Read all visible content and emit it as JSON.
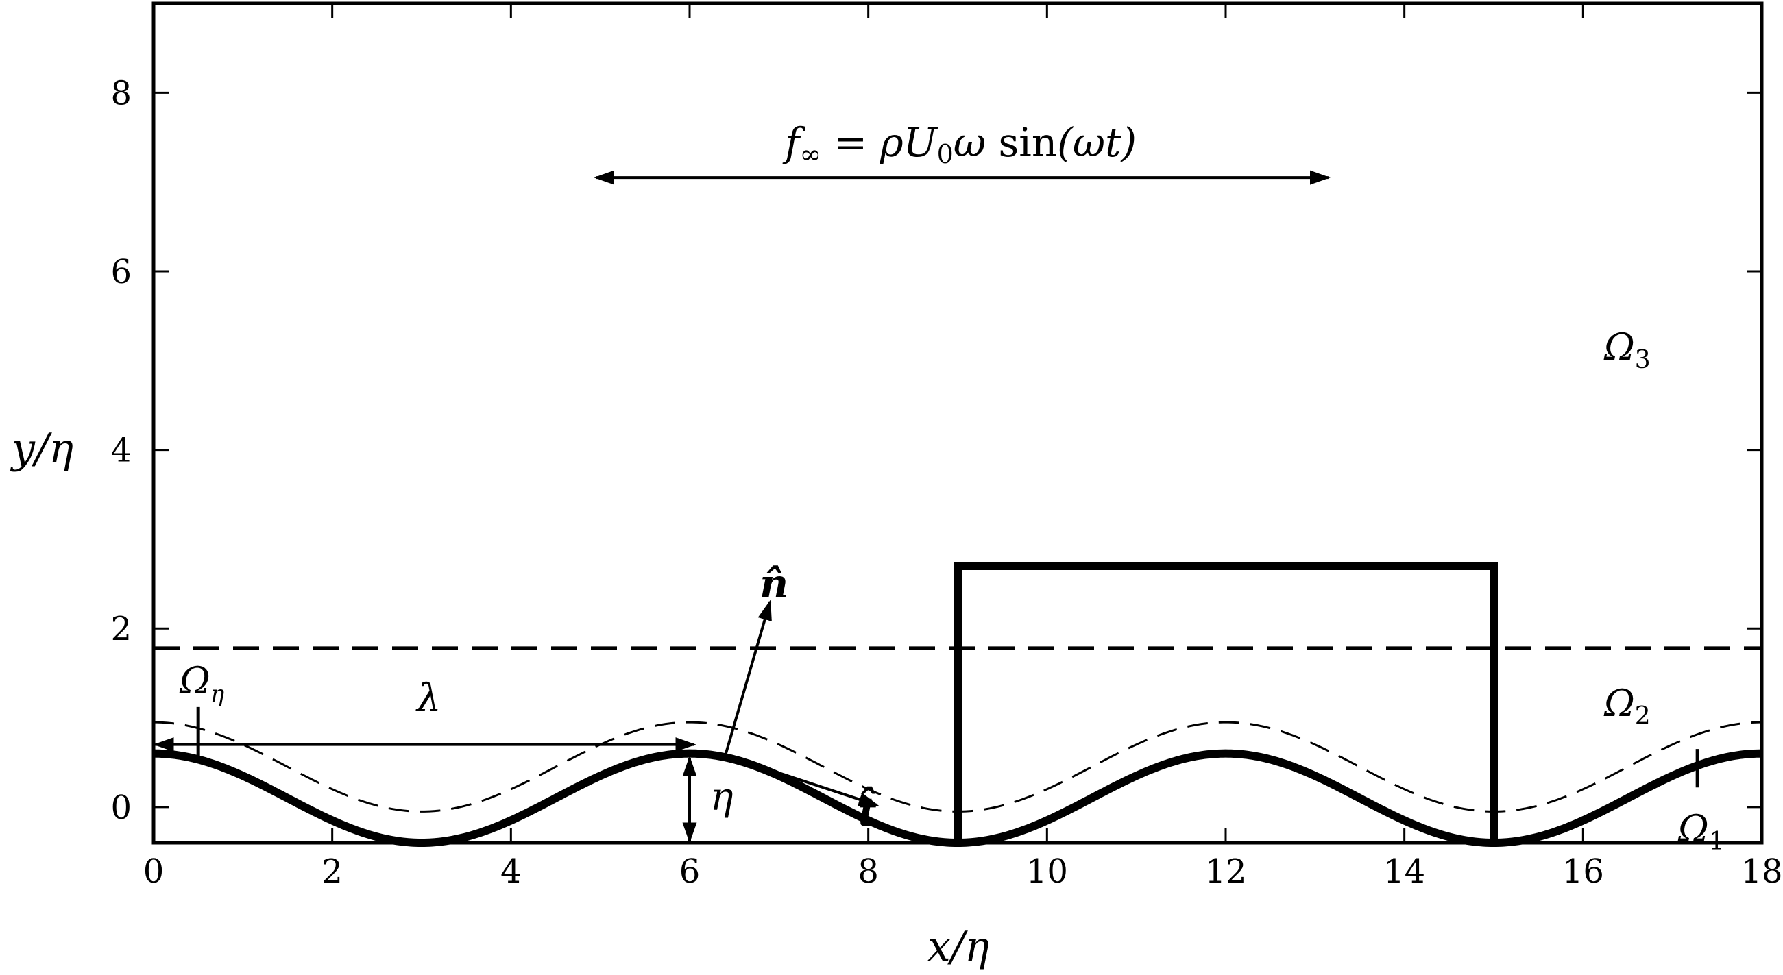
{
  "axes": {
    "xlabel": "x/η",
    "ylabel": "y/η",
    "xlim": [
      0,
      18
    ],
    "ylim": [
      -0.4,
      9
    ],
    "xticks": [
      {
        "value": 0,
        "label": "0"
      },
      {
        "value": 2,
        "label": "2"
      },
      {
        "value": 4,
        "label": "4"
      },
      {
        "value": 6,
        "label": "6"
      },
      {
        "value": 8,
        "label": "8"
      },
      {
        "value": 10,
        "label": "10"
      },
      {
        "value": 12,
        "label": "12"
      },
      {
        "value": 14,
        "label": "14"
      },
      {
        "value": 16,
        "label": "16"
      },
      {
        "value": 18,
        "label": "18"
      }
    ],
    "yticks": [
      {
        "value": 0,
        "label": "0"
      },
      {
        "value": 2,
        "label": "2"
      },
      {
        "value": 4,
        "label": "4"
      },
      {
        "value": 6,
        "label": "6"
      },
      {
        "value": 8,
        "label": "8"
      }
    ]
  },
  "geometry": {
    "wall_mean": 0.1,
    "wall_amplitude": 0.5,
    "wavelength": 6,
    "offset_curve_shift": 0.35,
    "interface_y": 1.78,
    "box": {
      "x0": 9,
      "x1": 15,
      "y_top": 2.7
    }
  },
  "labels": {
    "forcing": {
      "f": "f",
      "sub": "∞",
      "rest1": " = ρU",
      "sub0": "0",
      "rest2": "ω ",
      "sin": "sin",
      "rest3": "(ωt)"
    },
    "omega3": {
      "main": "Ω",
      "sub": "3"
    },
    "omega2": {
      "main": "Ω",
      "sub": "2"
    },
    "omega1": {
      "main": "Ω",
      "sub": "1"
    },
    "omega_eta": {
      "main": "Ω",
      "sub": "η"
    },
    "lambda": "λ",
    "eta": "η",
    "normal": "n̂",
    "tangent": "t̂"
  }
}
